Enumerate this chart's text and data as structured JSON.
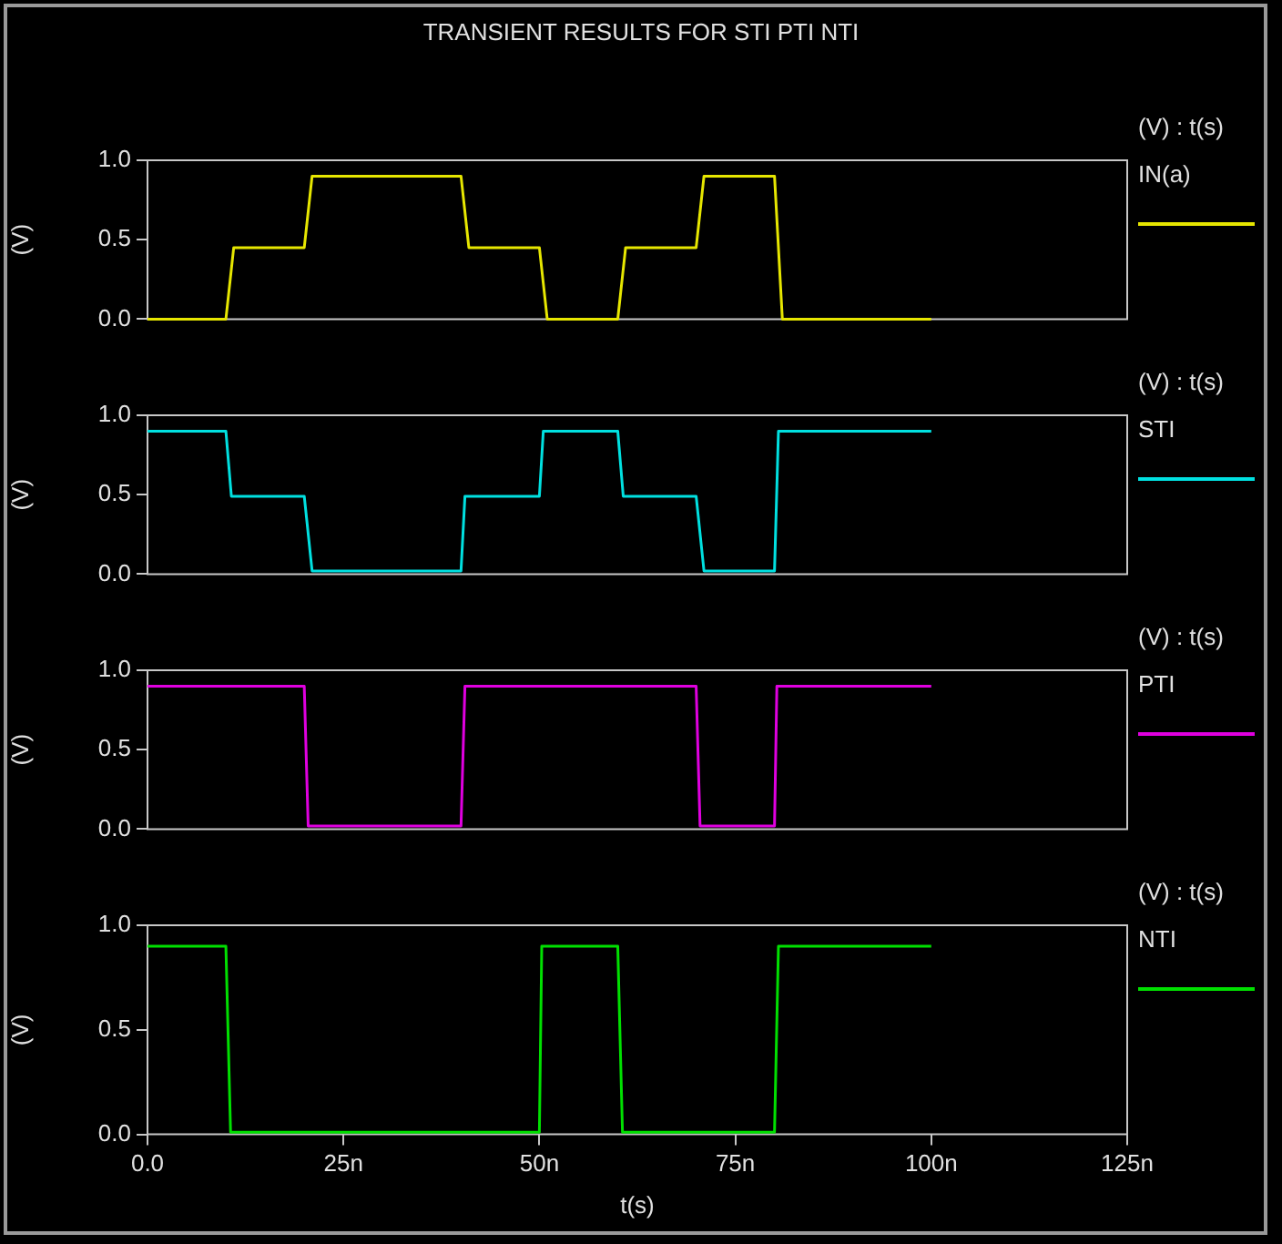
{
  "chart_data": [
    {
      "type": "line",
      "title": "TRANSIENT RESULTS FOR STI PTI NTI",
      "ylabel": "(V)",
      "annotations": [
        "(V) : t(s)"
      ],
      "xlim": [
        0,
        125
      ],
      "ylim": [
        0,
        1
      ],
      "yticks": [
        {
          "value": 0,
          "label": "0.0"
        },
        {
          "value": 0.5,
          "label": "0.5"
        },
        {
          "value": 1,
          "label": "1.0"
        }
      ],
      "tick_labels": "y",
      "legend": "right",
      "marker": "none",
      "series": [
        {
          "name": "IN(a)",
          "color": "#e6e600",
          "x": [
            0,
            10,
            11,
            20,
            21,
            40,
            41,
            50,
            51,
            60,
            61,
            70,
            71,
            80,
            81,
            100
          ],
          "values": [
            0,
            0,
            0.45,
            0.45,
            0.9,
            0.9,
            0.45,
            0.45,
            0,
            0,
            0.45,
            0.45,
            0.9,
            0.9,
            0,
            0
          ]
        }
      ]
    },
    {
      "type": "line",
      "ylabel": "(V)",
      "annotations": [
        "(V) : t(s)"
      ],
      "xlim": [
        0,
        125
      ],
      "ylim": [
        0,
        1
      ],
      "yticks": [
        {
          "value": 0,
          "label": "0.0"
        },
        {
          "value": 0.5,
          "label": "0.5"
        },
        {
          "value": 1,
          "label": "1.0"
        }
      ],
      "tick_labels": "y",
      "legend": "right",
      "marker": "none",
      "series": [
        {
          "name": "STI",
          "color": "#00e0e0",
          "x": [
            0,
            10,
            10.7,
            20,
            21,
            40,
            40.5,
            50,
            50.5,
            60,
            60.7,
            70,
            71,
            80,
            80.5,
            100
          ],
          "values": [
            0.9,
            0.9,
            0.49,
            0.49,
            0.02,
            0.02,
            0.49,
            0.49,
            0.9,
            0.9,
            0.49,
            0.49,
            0.02,
            0.02,
            0.9,
            0.9
          ]
        }
      ]
    },
    {
      "type": "line",
      "ylabel": "(V)",
      "annotations": [
        "(V) : t(s)"
      ],
      "xlim": [
        0,
        125
      ],
      "ylim": [
        0,
        1
      ],
      "yticks": [
        {
          "value": 0,
          "label": "0.0"
        },
        {
          "value": 0.5,
          "label": "0.5"
        },
        {
          "value": 1,
          "label": "1.0"
        }
      ],
      "tick_labels": "y",
      "legend": "right",
      "marker": "none",
      "series": [
        {
          "name": "PTI",
          "color": "#e000e0",
          "x": [
            0,
            20,
            20.5,
            40,
            40.5,
            70,
            70.5,
            80,
            80.3,
            100
          ],
          "values": [
            0.9,
            0.9,
            0.02,
            0.02,
            0.9,
            0.9,
            0.02,
            0.02,
            0.9,
            0.9
          ]
        }
      ]
    },
    {
      "type": "line",
      "xlabel": "t(s)",
      "ylabel": "(V)",
      "annotations": [
        "(V) : t(s)"
      ],
      "xlim": [
        0,
        125
      ],
      "xticks": [
        {
          "value": 0,
          "label": "0.0"
        },
        {
          "value": 25,
          "label": "25n"
        },
        {
          "value": 50,
          "label": "50n"
        },
        {
          "value": 75,
          "label": "75n"
        },
        {
          "value": 100,
          "label": "100n"
        },
        {
          "value": 125,
          "label": "125n"
        }
      ],
      "ylim": [
        0,
        1
      ],
      "yticks": [
        {
          "value": 0,
          "label": "0.0"
        },
        {
          "value": 0.5,
          "label": "0.5"
        },
        {
          "value": 1,
          "label": "1.0"
        }
      ],
      "legend": "right",
      "marker": "none",
      "series": [
        {
          "name": "NTI",
          "color": "#00e000",
          "x": [
            0,
            10,
            10.6,
            50,
            50.3,
            60,
            60.6,
            80,
            80.5,
            100
          ],
          "values": [
            0.9,
            0.9,
            0.01,
            0.01,
            0.9,
            0.9,
            0.01,
            0.01,
            0.9,
            0.9
          ]
        }
      ]
    }
  ]
}
